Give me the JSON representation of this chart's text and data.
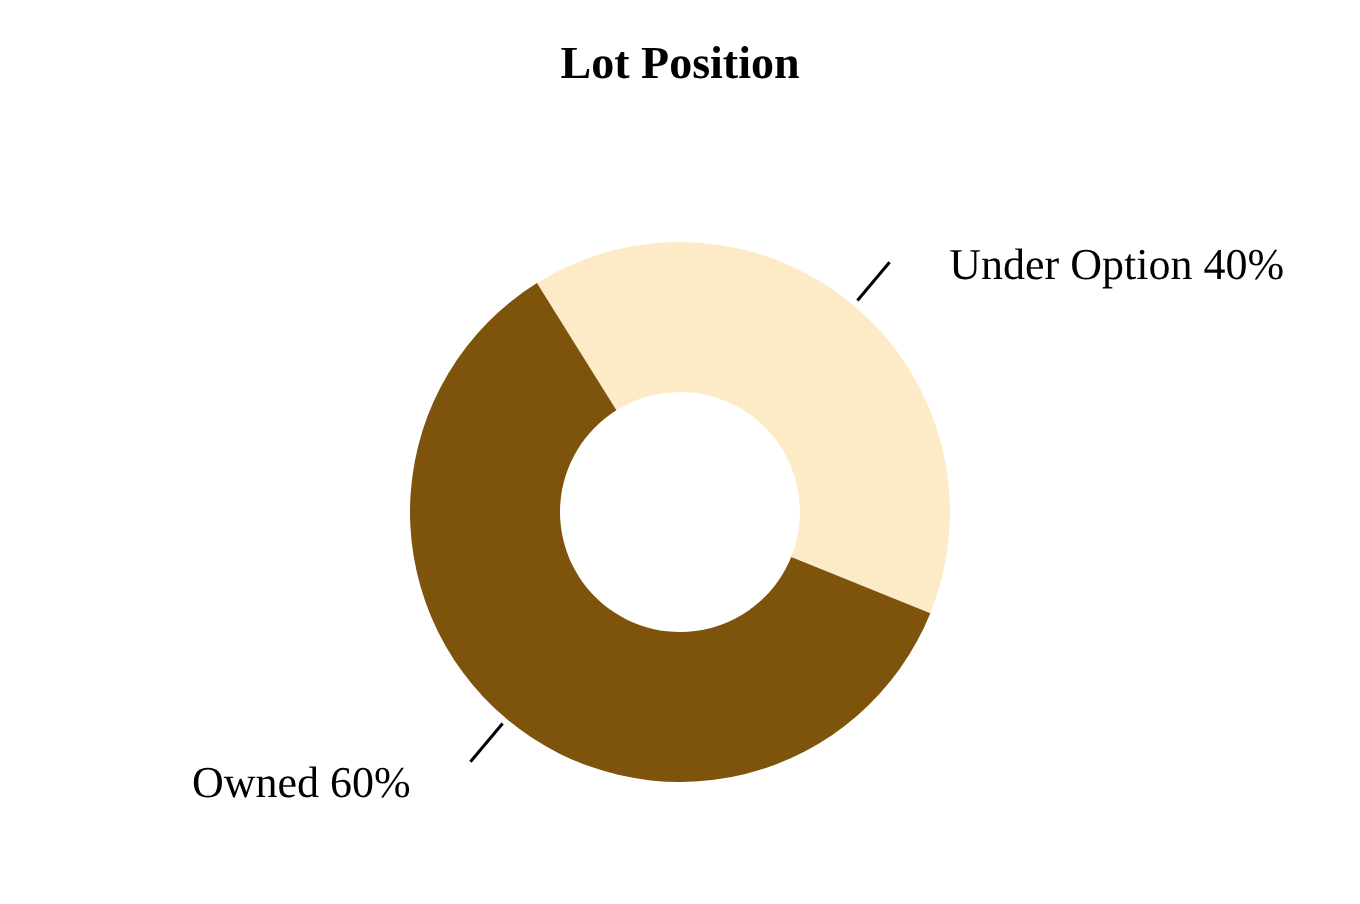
{
  "chart_data": {
    "type": "donut",
    "title": "Lot Position",
    "categories": [
      "Under Option",
      "Owned"
    ],
    "values": [
      40,
      60
    ],
    "value_labels": [
      "40%",
      "60%"
    ],
    "colors": [
      "#fdebc8",
      "#7e540d"
    ]
  }
}
